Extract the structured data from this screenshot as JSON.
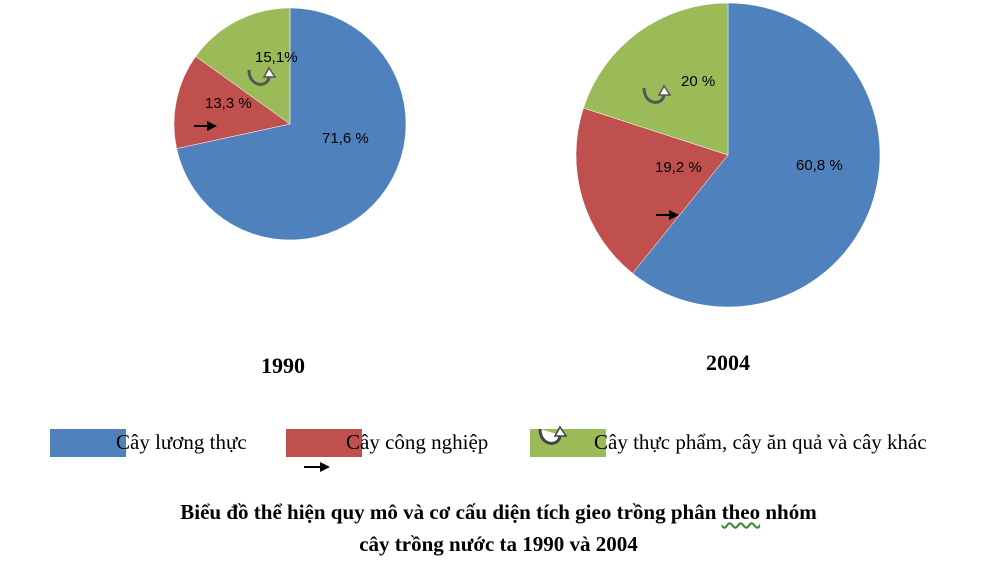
{
  "colors": {
    "food": "#4F81BD",
    "industrial": "#C0504D",
    "other": "#9BBB59"
  },
  "legend": [
    {
      "label": "Cây lương thực",
      "color": "#4F81BD",
      "icon": "none"
    },
    {
      "label": "Cây công nghiệp",
      "color": "#C0504D",
      "icon": "right-arrow-icon"
    },
    {
      "label": "Cây thực phẩm, cây ăn quả và cây khác",
      "color": "#9BBB59",
      "icon": "curved-arrow-icon"
    }
  ],
  "caption": {
    "line1_pre": "Biểu đồ thể hiện quy mô và cơ cấu diện tích gieo trồng phân ",
    "line1_wavy": "theo",
    "line1_post": " nhóm",
    "line2": "cây trồng nước ta 1990 và 2004"
  },
  "chart_data": [
    {
      "type": "pie",
      "title": "1990",
      "categories": [
        "Cây lương thực",
        "Cây công nghiệp",
        "Cây thực phẩm, cây ăn quả và cây khác"
      ],
      "values": [
        71.6,
        13.3,
        15.1
      ],
      "labels": [
        "71,6  %",
        "13,3 %",
        "15,1%"
      ]
    },
    {
      "type": "pie",
      "title": "2004",
      "categories": [
        "Cây lương thực",
        "Cây công nghiệp",
        "Cây thực phẩm, cây ăn quả và cây khác"
      ],
      "values": [
        60.8,
        19.2,
        20.0
      ],
      "labels": [
        "60,8 %",
        "19,2 %",
        "20 %"
      ]
    }
  ]
}
